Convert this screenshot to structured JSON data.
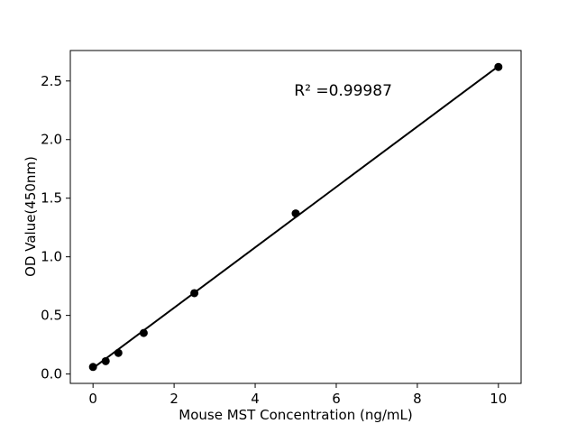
{
  "figure": {
    "background_color": "#ffffff",
    "foreground_color": "#000000"
  },
  "chart_data": {
    "type": "scatter",
    "title": "",
    "xlabel": "Mouse MST Concentration (ng/mL)",
    "ylabel": "OD Value(450nm)",
    "annotation": "R² =0.99987",
    "annotation_pos": {
      "x": 6.17,
      "y": 2.41
    },
    "x": [
      0,
      0.3125,
      0.625,
      1.25,
      2.5,
      5,
      10
    ],
    "y": [
      0.06,
      0.11,
      0.18,
      0.35,
      0.69,
      1.37,
      2.62
    ],
    "fit_line": {
      "slope": 0.2576,
      "intercept": 0.05,
      "x_start": 0,
      "x_end": 10
    },
    "xlim": [
      -0.56,
      10.56
    ],
    "ylim": [
      -0.08,
      2.76
    ],
    "xticks": [
      {
        "v": 0,
        "label": "0"
      },
      {
        "v": 2,
        "label": "2"
      },
      {
        "v": 4,
        "label": "4"
      },
      {
        "v": 6,
        "label": "6"
      },
      {
        "v": 8,
        "label": "8"
      },
      {
        "v": 10,
        "label": "10"
      }
    ],
    "yticks": [
      {
        "v": 0.0,
        "label": "0.0"
      },
      {
        "v": 0.5,
        "label": "0.5"
      },
      {
        "v": 1.0,
        "label": "1.0"
      },
      {
        "v": 1.5,
        "label": "1.5"
      },
      {
        "v": 2.0,
        "label": "2.0"
      },
      {
        "v": 2.5,
        "label": "2.5"
      }
    ],
    "grid": false,
    "legend": null,
    "marker": "circle",
    "marker_color": "#000000",
    "line_color": "#000000"
  }
}
